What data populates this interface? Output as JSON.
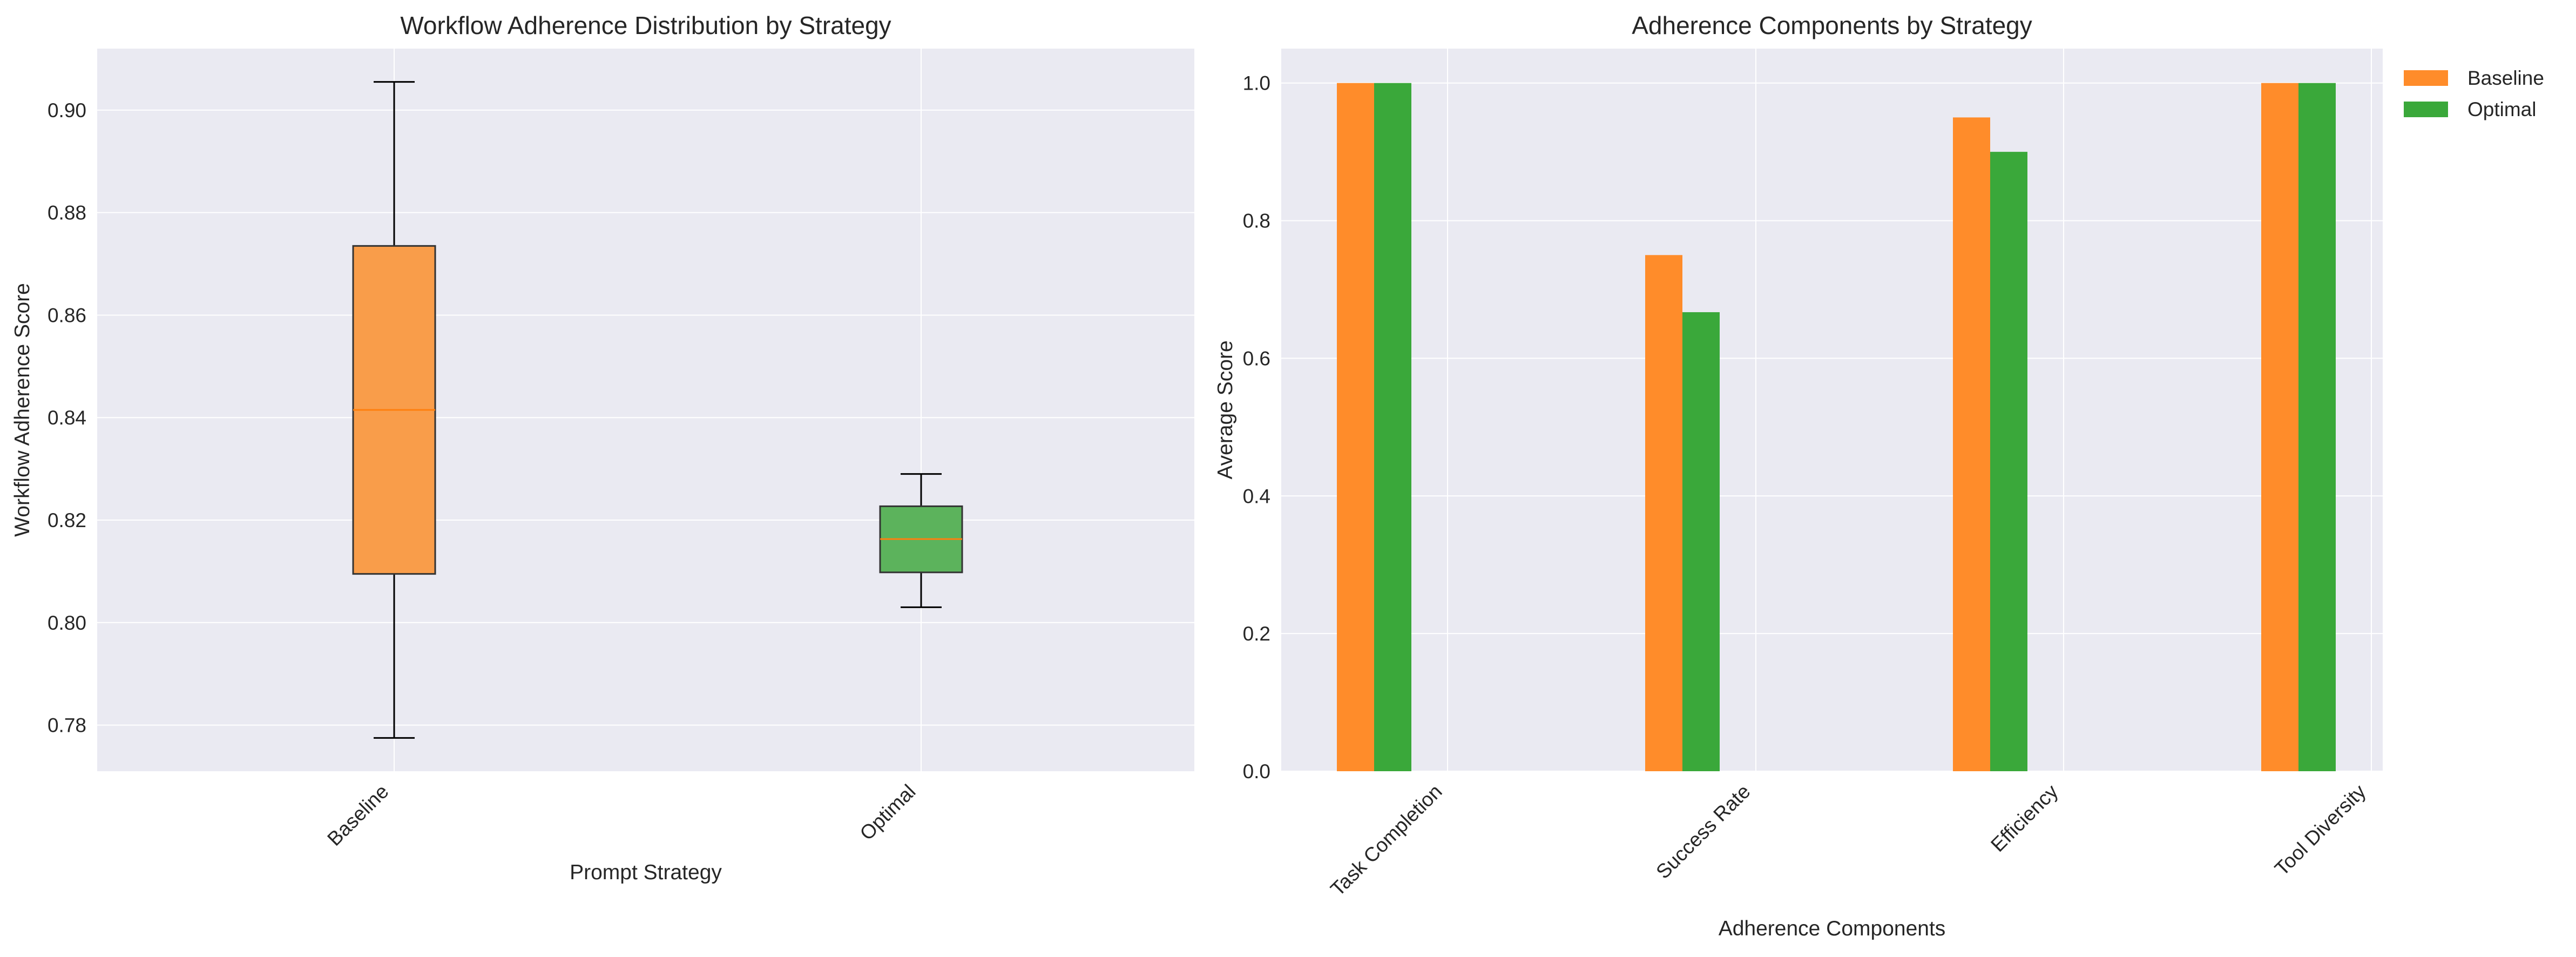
{
  "colors": {
    "baseline": "#ff8c2a",
    "optimal": "#3aa83a",
    "baseline_box": "#f99d4a",
    "optimal_box": "#5cb35c",
    "median": "#ff7f0e",
    "plot_bg": "#eaeaf2",
    "grid": "#ffffff"
  },
  "chart_data": [
    {
      "type": "box",
      "title": "Workflow Adherence Distribution by Strategy",
      "xlabel": "Prompt Strategy",
      "ylabel": "Workflow Adherence Score",
      "ylim": [
        0.771,
        0.912
      ],
      "yticks": [
        "0.78",
        "0.80",
        "0.82",
        "0.84",
        "0.86",
        "0.88",
        "0.90"
      ],
      "categories": [
        "Baseline",
        "Optimal"
      ],
      "boxes": [
        {
          "name": "Baseline",
          "whisker_low": 0.7775,
          "q1": 0.8095,
          "median": 0.8415,
          "q3": 0.8735,
          "whisker_high": 0.9055
        },
        {
          "name": "Optimal",
          "whisker_low": 0.803,
          "q1": 0.8098,
          "median": 0.8163,
          "q3": 0.8227,
          "whisker_high": 0.829
        }
      ],
      "grid": true
    },
    {
      "type": "bar",
      "title": "Adherence Components by Strategy",
      "xlabel": "Adherence Components",
      "ylabel": "Average Score",
      "ylim": [
        0,
        1.05
      ],
      "yticks": [
        "0.0",
        "0.2",
        "0.4",
        "0.6",
        "0.8",
        "1.0"
      ],
      "categories": [
        "Task Completion",
        "Success Rate",
        "Efficiency",
        "Tool Diversity"
      ],
      "series": [
        {
          "name": "Baseline",
          "values": [
            1.0,
            0.75,
            0.95,
            1.0
          ]
        },
        {
          "name": "Optimal",
          "values": [
            1.0,
            0.667,
            0.9,
            1.0
          ]
        }
      ],
      "legend": "top-right outside",
      "grid": true
    }
  ]
}
